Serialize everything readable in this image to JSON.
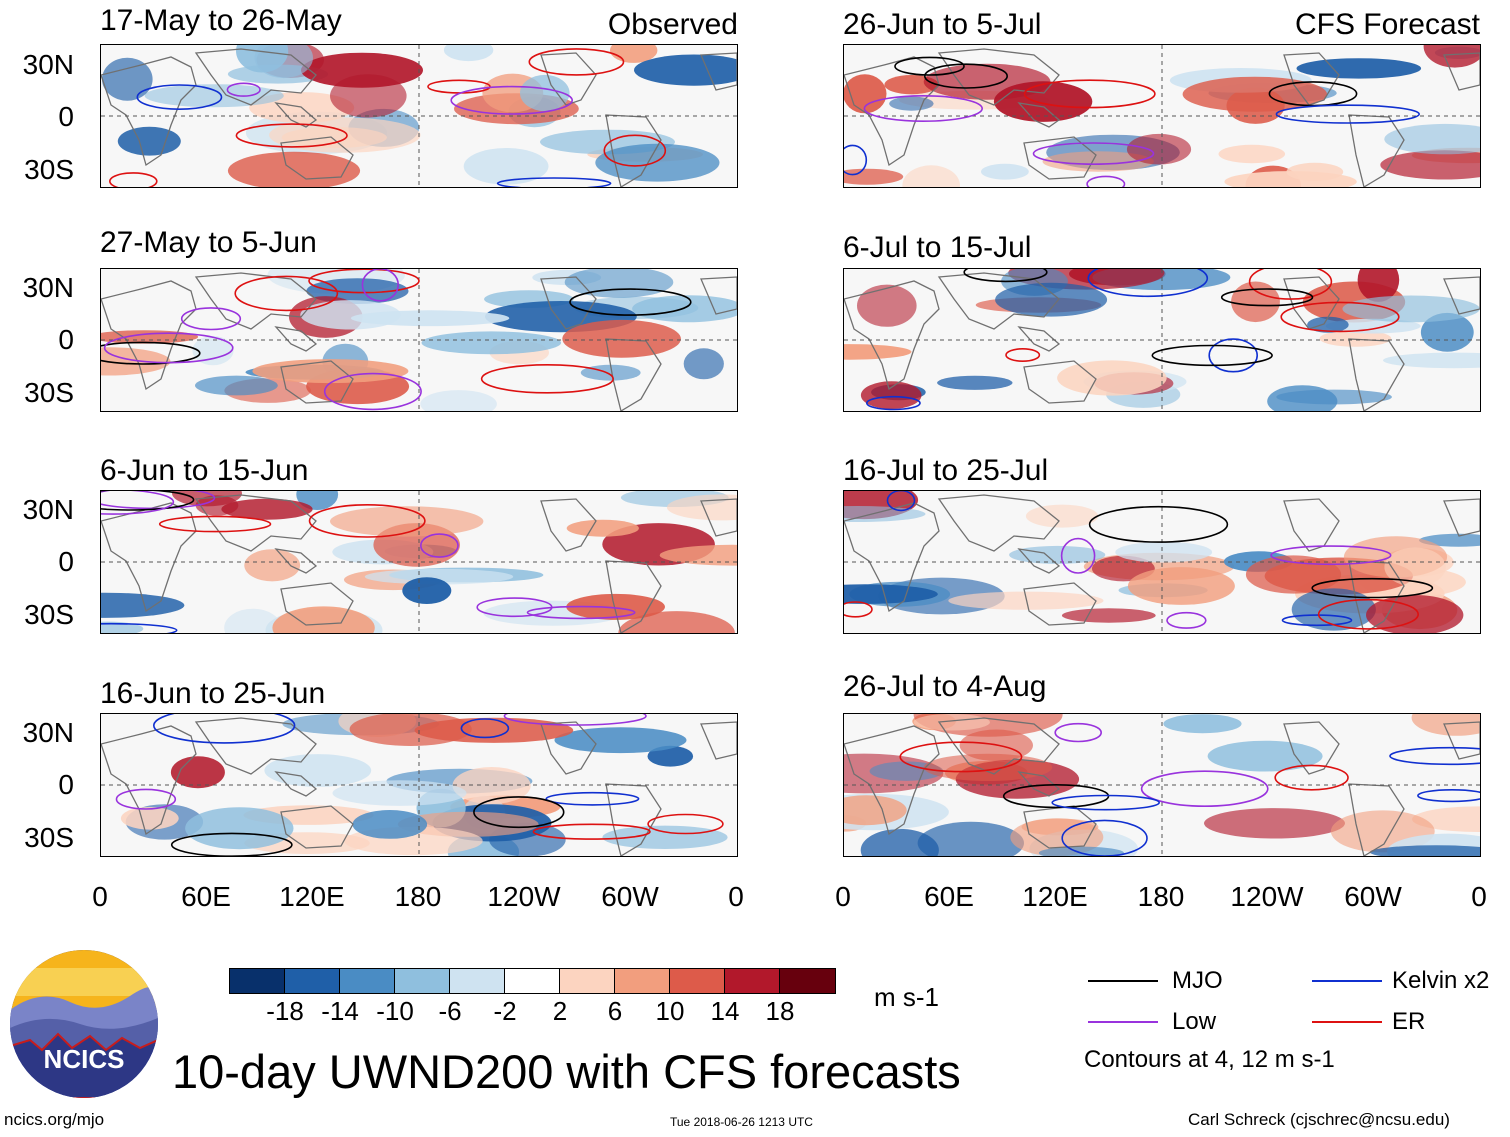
{
  "observed_label": "Observed",
  "forecast_label": "CFS Forecast",
  "panels_left": [
    {
      "title": "17-May to 26-May"
    },
    {
      "title": "27-May to 5-Jun"
    },
    {
      "title": "6-Jun to 15-Jun"
    },
    {
      "title": "16-Jun to 25-Jun"
    }
  ],
  "panels_right": [
    {
      "title": "26-Jun to 5-Jul"
    },
    {
      "title": "6-Jul to 15-Jul"
    },
    {
      "title": "16-Jul to 25-Jul"
    },
    {
      "title": "26-Jul to 4-Aug"
    }
  ],
  "lat_labels": [
    "30N",
    "0",
    "30S"
  ],
  "lon_labels": [
    "0",
    "60E",
    "120E",
    "180",
    "120W",
    "60W",
    "0"
  ],
  "colorbar": {
    "colors": [
      "#08306b",
      "#1f5fa8",
      "#4a8cc4",
      "#8fbfde",
      "#cfe3f1",
      "#ffffff",
      "#fcd4c0",
      "#f29e7e",
      "#dd5b4a",
      "#b2182b",
      "#67000d"
    ],
    "ticks": [
      "-18",
      "-14",
      "-10",
      "-6",
      "-2",
      "2",
      "6",
      "10",
      "14",
      "18"
    ],
    "units": "m s-1"
  },
  "legend": {
    "items": [
      {
        "label": "MJO",
        "color": "#000000"
      },
      {
        "label": "Kelvin x2",
        "color": "#1030d0"
      },
      {
        "label": "Low",
        "color": "#9933dd"
      },
      {
        "label": "ER",
        "color": "#dd1111"
      }
    ],
    "contour_note": "Contours at 4, 12 m s-1"
  },
  "main_title": "10-day UWND200 with CFS forecasts",
  "logo_text": "NCICS",
  "footer": {
    "url": "ncics.org/mjo",
    "timestamp": "Tue 2018-06-26 1213 UTC",
    "author": "Carl Schreck (cjschrec@ncsu.edu)"
  },
  "colors": {
    "land_outline": "#707070",
    "grid_dash": "#555555"
  }
}
